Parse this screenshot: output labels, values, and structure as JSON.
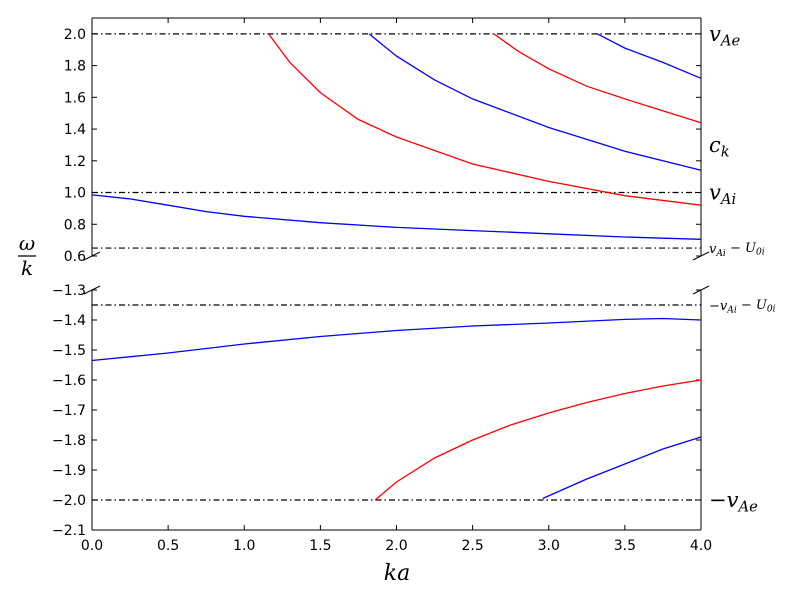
{
  "chart_data": {
    "type": "line",
    "xlabel": "ka",
    "ylabel": "ω/k",
    "x_ticks": [
      "0.0",
      "0.5",
      "1.0",
      "1.5",
      "2.0",
      "2.5",
      "3.0",
      "3.5",
      "4.0"
    ],
    "xlim": [
      0,
      4
    ],
    "panels": [
      {
        "id": "top",
        "ylim": [
          0.6,
          2.1
        ],
        "y_ticks": [
          "0.6",
          "0.8",
          "1.0",
          "1.2",
          "1.4",
          "1.6",
          "1.8",
          "2.0"
        ],
        "reference_lines": [
          {
            "y": 2.0,
            "label": "v",
            "sub": "Ae",
            "style": "dashdot"
          },
          {
            "y": 1.0,
            "label": "v",
            "sub": "Ai",
            "style": "dashdot"
          },
          {
            "y": 0.65,
            "label": "v",
            "sub": "Ai",
            "rest": " − U",
            "sub2": "0i",
            "style": "dashdot",
            "small": true
          }
        ],
        "extra_labels": [
          {
            "y": 1.3,
            "label": "c",
            "sub": "k"
          }
        ],
        "series": [
          {
            "color": "#0000ff",
            "x": [
              0.0,
              0.25,
              0.5,
              0.75,
              1.0,
              1.5,
              2.0,
              2.5,
              3.0,
              3.5,
              4.0
            ],
            "y": [
              0.985,
              0.96,
              0.92,
              0.88,
              0.85,
              0.81,
              0.78,
              0.76,
              0.74,
              0.72,
              0.705
            ]
          },
          {
            "color": "#ff0000",
            "x": [
              1.16,
              1.3,
              1.5,
              1.75,
              2.0,
              2.5,
              3.0,
              3.5,
              4.0
            ],
            "y": [
              2.0,
              1.82,
              1.63,
              1.46,
              1.35,
              1.18,
              1.07,
              0.98,
              0.92
            ]
          },
          {
            "color": "#0000ff",
            "x": [
              1.82,
              2.0,
              2.25,
              2.5,
              3.0,
              3.5,
              4.0
            ],
            "y": [
              2.0,
              1.86,
              1.71,
              1.59,
              1.41,
              1.26,
              1.14
            ]
          },
          {
            "color": "#ff0000",
            "x": [
              2.64,
              2.8,
              3.0,
              3.25,
              3.5,
              4.0
            ],
            "y": [
              2.0,
              1.89,
              1.78,
              1.67,
              1.59,
              1.44
            ]
          },
          {
            "color": "#0000ff",
            "x": [
              3.32,
              3.5,
              3.75,
              4.0
            ],
            "y": [
              2.0,
              1.91,
              1.82,
              1.72
            ]
          }
        ]
      },
      {
        "id": "bottom",
        "ylim": [
          -2.1,
          -1.3
        ],
        "y_ticks": [
          "-2.1",
          "-2.0",
          "-1.9",
          "-1.8",
          "-1.7",
          "-1.6",
          "-1.5",
          "-1.4",
          "-1.3"
        ],
        "reference_lines": [
          {
            "y": -1.35,
            "label": "−v",
            "sub": "Ai",
            "rest": " − U",
            "sub2": "0i",
            "style": "dashdot",
            "small": true
          },
          {
            "y": -2.0,
            "label": "−v",
            "sub": "Ae",
            "style": "dashdot"
          }
        ],
        "series": [
          {
            "color": "#0000ff",
            "x": [
              0.0,
              0.5,
              1.0,
              1.5,
              2.0,
              2.5,
              3.0,
              3.5,
              3.75,
              4.0
            ],
            "y": [
              -1.535,
              -1.51,
              -1.48,
              -1.455,
              -1.435,
              -1.42,
              -1.41,
              -1.398,
              -1.395,
              -1.4
            ]
          },
          {
            "color": "#ff0000",
            "x": [
              1.86,
              2.0,
              2.25,
              2.5,
              2.75,
              3.0,
              3.25,
              3.5,
              3.75,
              4.0
            ],
            "y": [
              -2.0,
              -1.94,
              -1.86,
              -1.8,
              -1.75,
              -1.71,
              -1.675,
              -1.645,
              -1.62,
              -1.6
            ]
          },
          {
            "color": "#0000ff",
            "x": [
              2.96,
              3.25,
              3.5,
              3.75,
              4.0
            ],
            "y": [
              -1.995,
              -1.93,
              -1.88,
              -1.83,
              -1.79
            ]
          }
        ]
      }
    ]
  }
}
